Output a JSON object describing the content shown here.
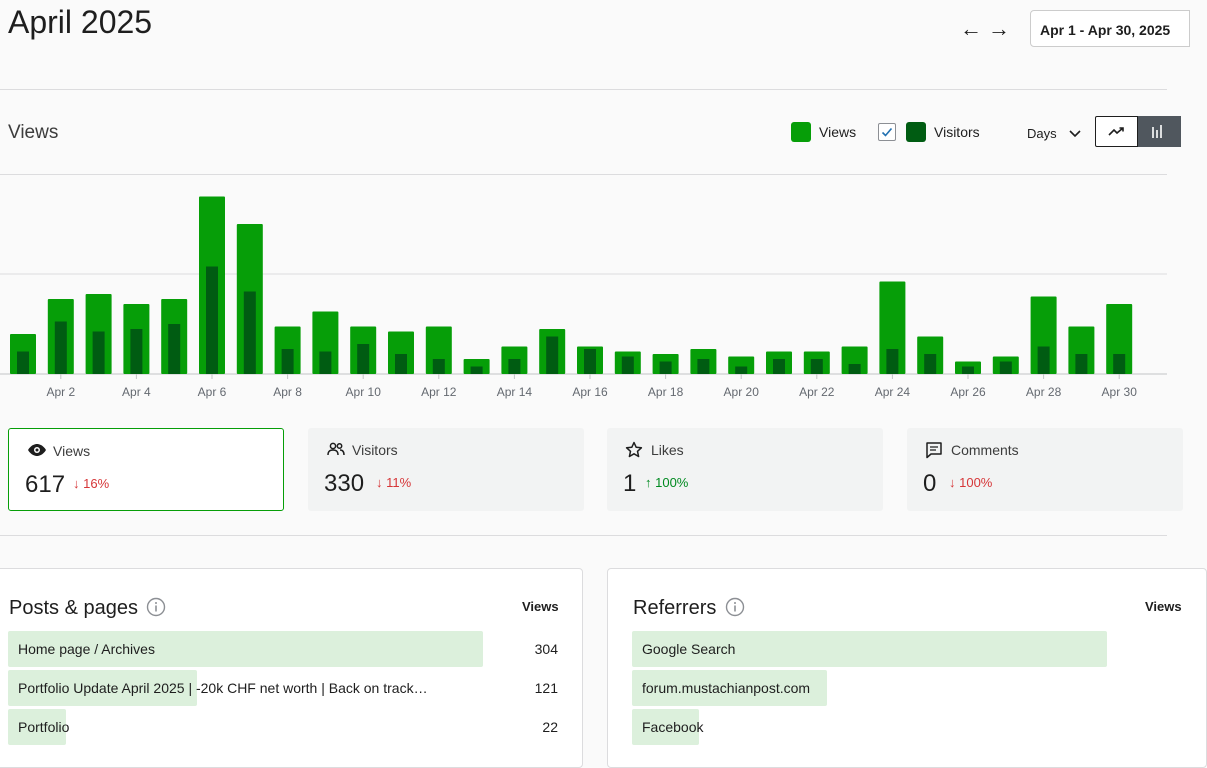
{
  "header": {
    "title": "April 2025",
    "prev_icon": "arrow-left-icon",
    "next_icon": "arrow-right-icon",
    "prev_label": "←",
    "next_label": "→",
    "date_range": "Apr 1 - Apr 30, 2025"
  },
  "chart_section": {
    "title": "Views",
    "legend_views": "Views",
    "legend_visitors": "Visitors",
    "period": "Days",
    "views_color": "#069e08",
    "visitors_color": "#005c12"
  },
  "chart_data": {
    "type": "bar",
    "categories": [
      "Apr 1",
      "Apr 2",
      "Apr 3",
      "Apr 4",
      "Apr 5",
      "Apr 6",
      "Apr 7",
      "Apr 8",
      "Apr 9",
      "Apr 10",
      "Apr 11",
      "Apr 12",
      "Apr 13",
      "Apr 14",
      "Apr 15",
      "Apr 16",
      "Apr 17",
      "Apr 18",
      "Apr 19",
      "Apr 20",
      "Apr 21",
      "Apr 22",
      "Apr 23",
      "Apr 24",
      "Apr 25",
      "Apr 26",
      "Apr 27",
      "Apr 28",
      "Apr 29",
      "Apr 30"
    ],
    "tick_labels": [
      "Apr 2",
      "Apr 4",
      "Apr 6",
      "Apr 8",
      "Apr 10",
      "Apr 12",
      "Apr 14",
      "Apr 16",
      "Apr 18",
      "Apr 20",
      "Apr 22",
      "Apr 24",
      "Apr 26",
      "Apr 28",
      "Apr 30"
    ],
    "series": [
      {
        "name": "Views",
        "values": [
          16,
          30,
          32,
          28,
          30,
          71,
          60,
          19,
          25,
          19,
          17,
          19,
          6,
          11,
          18,
          11,
          9,
          8,
          10,
          7,
          9,
          9,
          11,
          37,
          15,
          5,
          7,
          31,
          19,
          28
        ]
      },
      {
        "name": "Visitors",
        "values": [
          9,
          21,
          17,
          18,
          20,
          43,
          33,
          10,
          9,
          12,
          8,
          6,
          3,
          6,
          15,
          10,
          7,
          5,
          6,
          3,
          6,
          6,
          4,
          10,
          8,
          3,
          5,
          11,
          8,
          8
        ]
      }
    ],
    "ylim": [
      0,
      80
    ],
    "grid": true
  },
  "stats": [
    {
      "label": "Views",
      "value": "617",
      "change": "↓ 16%",
      "icon": "eye-icon",
      "direction": "down"
    },
    {
      "label": "Visitors",
      "value": "330",
      "change": "↓ 11%",
      "icon": "people-icon",
      "direction": "down"
    },
    {
      "label": "Likes",
      "value": "1",
      "change": "↑ 100%",
      "icon": "star-icon",
      "direction": "up"
    },
    {
      "label": "Comments",
      "value": "0",
      "change": "↓ 100%",
      "icon": "comment-icon",
      "direction": "down"
    }
  ],
  "posts_panel": {
    "title": "Posts & pages",
    "column": "Views",
    "rows": [
      {
        "label": "Home page / Archives",
        "value": "304",
        "fraction": 1.0
      },
      {
        "label": "Portfolio Update April 2025 | -20k CHF net worth | Back on track…",
        "value": "121",
        "fraction": 0.398
      },
      {
        "label": "Portfolio",
        "value": "22",
        "fraction": 0.072
      }
    ]
  },
  "referrers_panel": {
    "title": "Referrers",
    "column": "Views",
    "rows": [
      {
        "label": "Google Search",
        "fraction": 1.0
      },
      {
        "label": "forum.mustachianpost.com",
        "fraction": 0.41
      },
      {
        "label": "Facebook",
        "fraction": 0.14
      }
    ]
  }
}
